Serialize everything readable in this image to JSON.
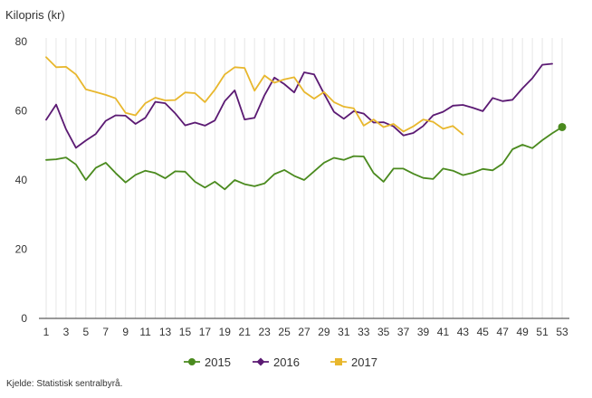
{
  "chart_data": {
    "type": "line",
    "title": "",
    "ylabel": "Kilopris (kr)",
    "xlabel": "",
    "ylim": [
      0,
      80
    ],
    "yticks": [
      0,
      20,
      40,
      60,
      80
    ],
    "xlim": [
      1,
      53
    ],
    "xticks": [
      1,
      3,
      5,
      7,
      9,
      11,
      13,
      15,
      17,
      19,
      21,
      23,
      25,
      27,
      29,
      31,
      33,
      35,
      37,
      39,
      41,
      43,
      45,
      47,
      49,
      51,
      53
    ],
    "grid": "vertical",
    "legend": "bottom",
    "series": [
      {
        "name": "2015",
        "color": "#4a8a1e",
        "x": [
          1,
          2,
          3,
          4,
          5,
          6,
          7,
          8,
          9,
          10,
          11,
          12,
          13,
          14,
          15,
          16,
          17,
          18,
          19,
          20,
          21,
          22,
          23,
          24,
          25,
          26,
          27,
          28,
          29,
          30,
          31,
          32,
          33,
          34,
          35,
          36,
          37,
          38,
          39,
          40,
          41,
          42,
          43,
          44,
          45,
          46,
          47,
          48,
          49,
          50,
          51,
          52,
          53
        ],
        "values": [
          45.8,
          46.0,
          46.5,
          44.5,
          40.0,
          43.5,
          45.0,
          42.0,
          39.3,
          41.5,
          42.7,
          42.0,
          40.5,
          42.5,
          42.4,
          39.5,
          37.8,
          39.5,
          37.3,
          40.0,
          38.8,
          38.2,
          39.0,
          41.7,
          42.9,
          41.2,
          40.0,
          42.5,
          45.0,
          46.4,
          45.8,
          46.9,
          46.8,
          42.0,
          39.5,
          43.3,
          43.3,
          41.8,
          40.6,
          40.3,
          43.3,
          42.7,
          41.4,
          42.1,
          43.2,
          42.8,
          44.7,
          48.9,
          50.2,
          49.2,
          51.5,
          53.5,
          55.3
        ],
        "end_marker": true
      },
      {
        "name": "2016",
        "color": "#5b1a73",
        "x": [
          1,
          2,
          3,
          4,
          5,
          6,
          7,
          8,
          9,
          10,
          11,
          12,
          13,
          14,
          15,
          16,
          17,
          18,
          19,
          20,
          21,
          22,
          23,
          24,
          25,
          26,
          27,
          28,
          29,
          30,
          31,
          32,
          33,
          34,
          35,
          36,
          37,
          38,
          39,
          40,
          41,
          42,
          43,
          44,
          45,
          46,
          47,
          48,
          49,
          50,
          51,
          52
        ],
        "values": [
          57.4,
          61.8,
          54.7,
          49.3,
          51.4,
          53.3,
          57.1,
          58.7,
          58.6,
          56.2,
          58.0,
          62.6,
          62.2,
          59.3,
          55.8,
          56.6,
          55.7,
          57.2,
          62.8,
          65.9,
          57.5,
          58.0,
          64.5,
          69.6,
          67.7,
          65.3,
          71.1,
          70.5,
          65.0,
          59.7,
          57.7,
          59.9,
          59.2,
          56.6,
          56.7,
          55.5,
          52.9,
          53.6,
          55.6,
          58.7,
          59.7,
          61.5,
          61.7,
          60.9,
          59.9,
          63.7,
          62.8,
          63.2,
          66.5,
          69.4,
          73.3,
          73.6
        ]
      },
      {
        "name": "2017",
        "color": "#e8b72d",
        "x": [
          1,
          2,
          3,
          4,
          5,
          6,
          7,
          8,
          9,
          10,
          11,
          12,
          13,
          14,
          15,
          16,
          17,
          18,
          19,
          20,
          21,
          22,
          23,
          24,
          25,
          26,
          27,
          28,
          29,
          30,
          31,
          32,
          33,
          34,
          35,
          36,
          37,
          38,
          39,
          40,
          41,
          42,
          43
        ],
        "values": [
          75.5,
          72.6,
          72.7,
          70.5,
          66.2,
          65.4,
          64.6,
          63.6,
          59.4,
          58.7,
          62.2,
          63.8,
          63.0,
          63.1,
          65.3,
          65.1,
          62.5,
          66.1,
          70.5,
          72.6,
          72.4,
          65.8,
          70.2,
          68.1,
          69.1,
          69.7,
          65.5,
          63.5,
          65.4,
          62.5,
          61.2,
          60.7,
          55.7,
          57.5,
          55.3,
          56.2,
          54.0,
          55.5,
          57.5,
          56.8,
          54.8,
          55.6,
          53.2
        ]
      }
    ]
  },
  "source_text": "Kjelde: Statistisk sentralbyrå."
}
